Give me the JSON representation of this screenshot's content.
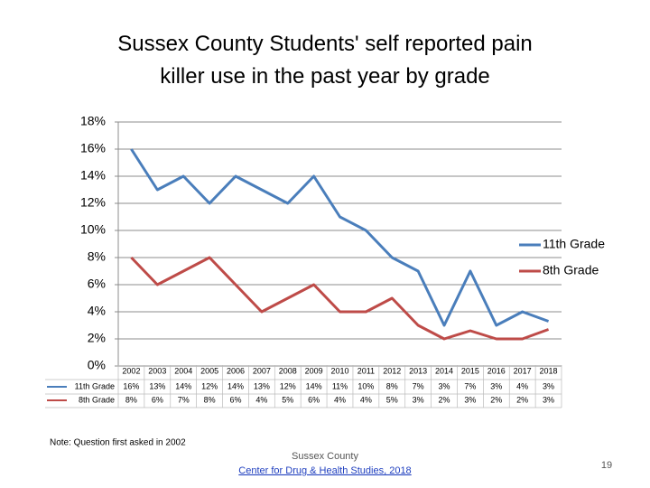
{
  "chart_data": {
    "type": "line",
    "title": "Sussex County Students' self reported pain killer use in the past year by grade",
    "categories": [
      "2002",
      "2003",
      "2004",
      "2005",
      "2006",
      "2007",
      "2008",
      "2009",
      "2010",
      "2011",
      "2012",
      "2013",
      "2014",
      "2015",
      "2016",
      "2017",
      "2018"
    ],
    "series": [
      {
        "name": "11th Grade",
        "color": "#4a7ebb",
        "values": [
          16,
          13,
          14,
          12,
          14,
          13,
          12,
          14,
          11,
          10,
          8,
          7,
          3,
          7,
          3,
          4,
          3.3
        ],
        "value_labels": [
          "16%",
          "13%",
          "14%",
          "12%",
          "14%",
          "13%",
          "12%",
          "14%",
          "11%",
          "10%",
          "8%",
          "7%",
          "3%",
          "7%",
          "3%",
          "4%",
          "3%"
        ]
      },
      {
        "name": "8th Grade",
        "color": "#be4b48",
        "values": [
          8,
          6,
          7,
          8,
          6,
          4,
          5,
          6,
          4,
          4,
          5,
          3,
          2,
          2.6,
          2,
          2,
          2.7
        ],
        "value_labels": [
          "8%",
          "6%",
          "7%",
          "8%",
          "6%",
          "4%",
          "5%",
          "6%",
          "4%",
          "4%",
          "5%",
          "3%",
          "2%",
          "3%",
          "2%",
          "2%",
          "3%"
        ]
      }
    ],
    "ylim": [
      0,
      18
    ],
    "yticks": [
      {
        "value": 0,
        "label": "0%"
      },
      {
        "value": 2,
        "label": "2%"
      },
      {
        "value": 4,
        "label": "4%"
      },
      {
        "value": 6,
        "label": "6%"
      },
      {
        "value": 8,
        "label": "8%"
      },
      {
        "value": 10,
        "label": "10%"
      },
      {
        "value": 12,
        "label": "12%"
      },
      {
        "value": 14,
        "label": "14%"
      },
      {
        "value": 16,
        "label": "16%"
      },
      {
        "value": 18,
        "label": "18%"
      }
    ],
    "grid": true,
    "legend": "right"
  },
  "note": "Note: Question first asked in 2002",
  "footer": {
    "org": "Sussex County",
    "link": "Center for Drug & Health Studies, 2018"
  },
  "page_number": "19"
}
